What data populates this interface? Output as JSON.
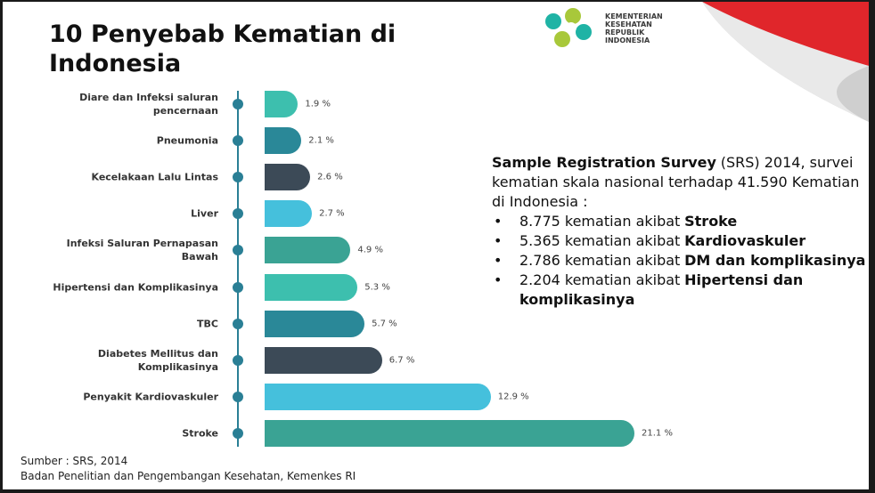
{
  "chart_data": {
    "type": "bar",
    "orientation": "horizontal",
    "title": "10 Penyebab Kematian di Indonesia",
    "categories": [
      "Diare dan Infeksi saluran pencernaan",
      "Pneumonia",
      "Kecelakaan Lalu Lintas",
      "Liver",
      "Infeksi Saluran Pernapasan Bawah",
      "Hipertensi dan Komplikasinya",
      "TBC",
      "Diabetes Mellitus dan Komplikasinya",
      "Penyakit Kardiovaskuler",
      "Stroke"
    ],
    "values": [
      1.9,
      2.1,
      2.6,
      2.7,
      4.9,
      5.3,
      5.7,
      6.7,
      12.9,
      21.1
    ],
    "value_labels": [
      "1.9 %",
      "2.1 %",
      "2.6 %",
      "2.7 %",
      "4.9 %",
      "5.3 %",
      "5.7 %",
      "6.7 %",
      "12.9 %",
      "21.1 %"
    ],
    "colors": [
      "#3dbfae",
      "#2a8898",
      "#3c4a57",
      "#45c0dc",
      "#3aa394",
      "#3dbfae",
      "#2a8898",
      "#3c4a57",
      "#45c0dc",
      "#3aa394"
    ]
  },
  "logo": {
    "lines": [
      "KEMENTERIAN",
      "KESEHATAN",
      "REPUBLIK",
      "INDONESIA"
    ]
  },
  "survey": {
    "intro_bold": "Sample Registration Survey",
    "intro": "(SRS) 2014, survei kematian skala nasional terhadap 41.590 Kematian di Indonesia :",
    "bullets": [
      {
        "text": "8.775 kematian akibat",
        "bold": "Stroke"
      },
      {
        "text": "5.365 kematian akibat",
        "bold": "Kardiovaskuler"
      },
      {
        "text": "2.786 kematian akibat",
        "bold": "DM dan komplikasinya"
      },
      {
        "text": "2.204 kematian akibat",
        "bold": "Hipertensi dan komplikasinya"
      }
    ]
  },
  "source": {
    "lines": [
      "Sumber  : SRS, 2014",
      "Badan Penelitian dan Pengembangan Kesehatan, Kemenkes RI"
    ]
  }
}
